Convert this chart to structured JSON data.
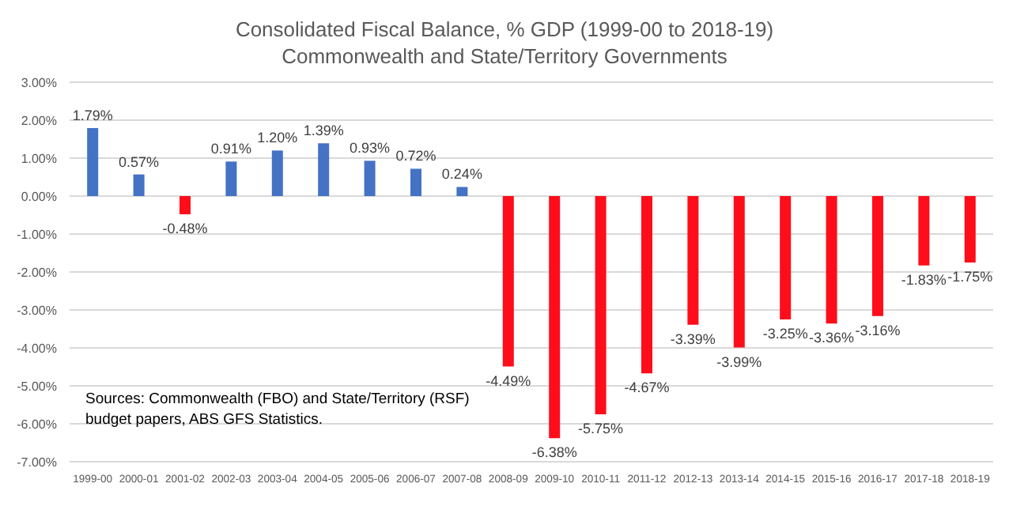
{
  "chart_data": {
    "type": "bar",
    "title": "Consolidated Fiscal Balance, % GDP (1999-00 to 2018-19)",
    "subtitle": "Commonwealth and State/Territory Governments",
    "categories": [
      "1999-00",
      "2000-01",
      "2001-02",
      "2002-03",
      "2003-04",
      "2004-05",
      "2005-06",
      "2006-07",
      "2007-08",
      "2008-09",
      "2009-10",
      "2010-11",
      "2011-12",
      "2012-13",
      "2013-14",
      "2014-15",
      "2015-16",
      "2016-17",
      "2017-18",
      "2018-19"
    ],
    "values": [
      1.79,
      0.57,
      -0.48,
      0.91,
      1.2,
      1.39,
      0.93,
      0.72,
      0.24,
      -4.49,
      -6.38,
      -5.75,
      -4.67,
      -3.39,
      -3.99,
      -3.25,
      -3.36,
      -3.16,
      -1.83,
      -1.75
    ],
    "value_labels": [
      "1.79%",
      "0.57%",
      "-0.48%",
      "0.91%",
      "1.20%",
      "1.39%",
      "0.93%",
      "0.72%",
      "0.24%",
      "-4.49%",
      "-6.38%",
      "-5.75%",
      "-4.67%",
      "-3.39%",
      "-3.99%",
      "-3.25%",
      "-3.36%",
      "-3.16%",
      "-1.83%",
      "-1.75%"
    ],
    "colors": [
      "#4472c4",
      "#4472c4",
      "#ff0d1a",
      "#4472c4",
      "#4472c4",
      "#4472c4",
      "#4472c4",
      "#4472c4",
      "#4472c4",
      "#ff0d1a",
      "#ff0d1a",
      "#ff0d1a",
      "#ff0d1a",
      "#ff0d1a",
      "#ff0d1a",
      "#ff0d1a",
      "#ff0d1a",
      "#ff0d1a",
      "#ff0d1a",
      "#ff0d1a"
    ],
    "ylim": [
      -7,
      3
    ],
    "yticks": [
      {
        "value": 3,
        "label": "3.00%"
      },
      {
        "value": 2,
        "label": "2.00%"
      },
      {
        "value": 1,
        "label": "1.00%"
      },
      {
        "value": 0,
        "label": "0.00%"
      },
      {
        "value": -1,
        "label": "-1.00%"
      },
      {
        "value": -2,
        "label": "-2.00%"
      },
      {
        "value": -3,
        "label": "-3.00%"
      },
      {
        "value": -4,
        "label": "-4.00%"
      },
      {
        "value": -5,
        "label": "-5.00%"
      },
      {
        "value": -6,
        "label": "-6.00%"
      },
      {
        "value": -7,
        "label": "-7.00%"
      }
    ],
    "grid": "y",
    "legend": false,
    "annotations": [
      "Sources: Commonwealth (FBO) and State/Territory (RSF) budget papers, ABS GFS Statistics."
    ]
  }
}
